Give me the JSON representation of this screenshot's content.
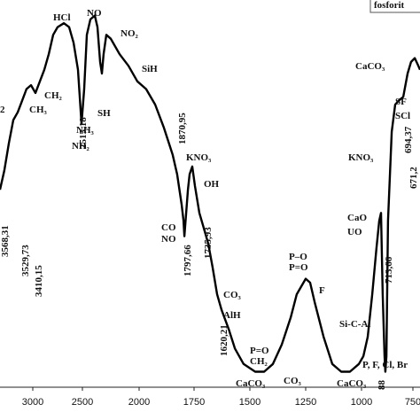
{
  "chart_data": {
    "type": "line",
    "x": [
      3330,
      3286,
      3241,
      3196,
      3152,
      3107,
      3063,
      3018,
      2973,
      2929,
      2884,
      2839,
      2795,
      2750,
      2687,
      2634,
      2589,
      2545,
      2509,
      2484,
      2461,
      2430,
      2391,
      2367,
      2344,
      2328,
      2313,
      2289,
      2250,
      2172,
      2094,
      2016,
      1968,
      1927,
      1887,
      1847,
      1827,
      1806,
      1798,
      1794,
      1786,
      1778,
      1770,
      1758,
      1746,
      1726,
      1706,
      1686,
      1667,
      1647,
      1627,
      1595,
      1567,
      1528,
      1476,
      1436,
      1397,
      1357,
      1317,
      1290,
      1250,
      1230,
      1210,
      1170,
      1131,
      1091,
      1052,
      1012,
      991,
      970,
      948,
      927,
      914,
      905,
      897,
      888,
      884,
      879,
      871,
      853,
      836,
      819,
      797,
      776,
      759,
      741,
      724,
      716
    ],
    "series": [
      {
        "color": "#000000",
        "values": [
          51,
          56,
          63,
          69,
          71,
          74,
          77,
          78,
          76,
          79,
          82,
          86,
          91,
          93,
          94,
          93,
          89,
          82,
          68,
          77,
          91,
          95,
          96,
          93,
          84,
          81,
          86,
          91,
          90,
          86,
          83,
          79,
          77,
          73,
          67,
          60,
          55,
          47,
          43,
          39,
          45,
          51,
          55,
          57,
          52,
          45,
          41,
          37,
          31,
          24,
          20,
          15,
          10,
          6,
          4,
          4,
          6,
          11,
          18,
          24,
          28,
          27,
          22,
          13,
          6,
          4,
          4,
          6,
          8,
          13,
          24,
          36,
          43,
          45,
          24,
          8,
          4,
          8,
          43,
          66,
          73,
          74,
          75,
          81,
          84,
          85,
          83,
          82
        ]
      }
    ],
    "xlim": [
      3330,
      716
    ],
    "ylim": [
      0,
      100
    ],
    "xticks": [
      3000,
      2500,
      2000,
      1750,
      1500,
      1250,
      1000,
      750
    ],
    "annotations": [
      "2",
      "HCl",
      "NO",
      "NO₂",
      "CH₂",
      "CH₃",
      "NH₃",
      "NH₂",
      "SH",
      "SiH",
      "2515,18",
      "1870,95",
      "KNO₃",
      "OH",
      "CO",
      "NO",
      "1797,66",
      "1735,93",
      "CO₃",
      "AlH",
      "1620,21",
      "P=O",
      "CH₂",
      "CaCO₃",
      "CO₃",
      "P–O",
      "P=O",
      "F",
      "CaCO₃",
      "KNO₃",
      "CaO",
      "UO",
      "713,66",
      "Si-C-Al",
      "P, F, Cl, Br",
      "88",
      "CaCO₃",
      "SF",
      "SCl",
      "694,37",
      "671,2",
      "3568,31",
      "3529,73",
      "3410,15",
      "fosforit"
    ]
  }
}
